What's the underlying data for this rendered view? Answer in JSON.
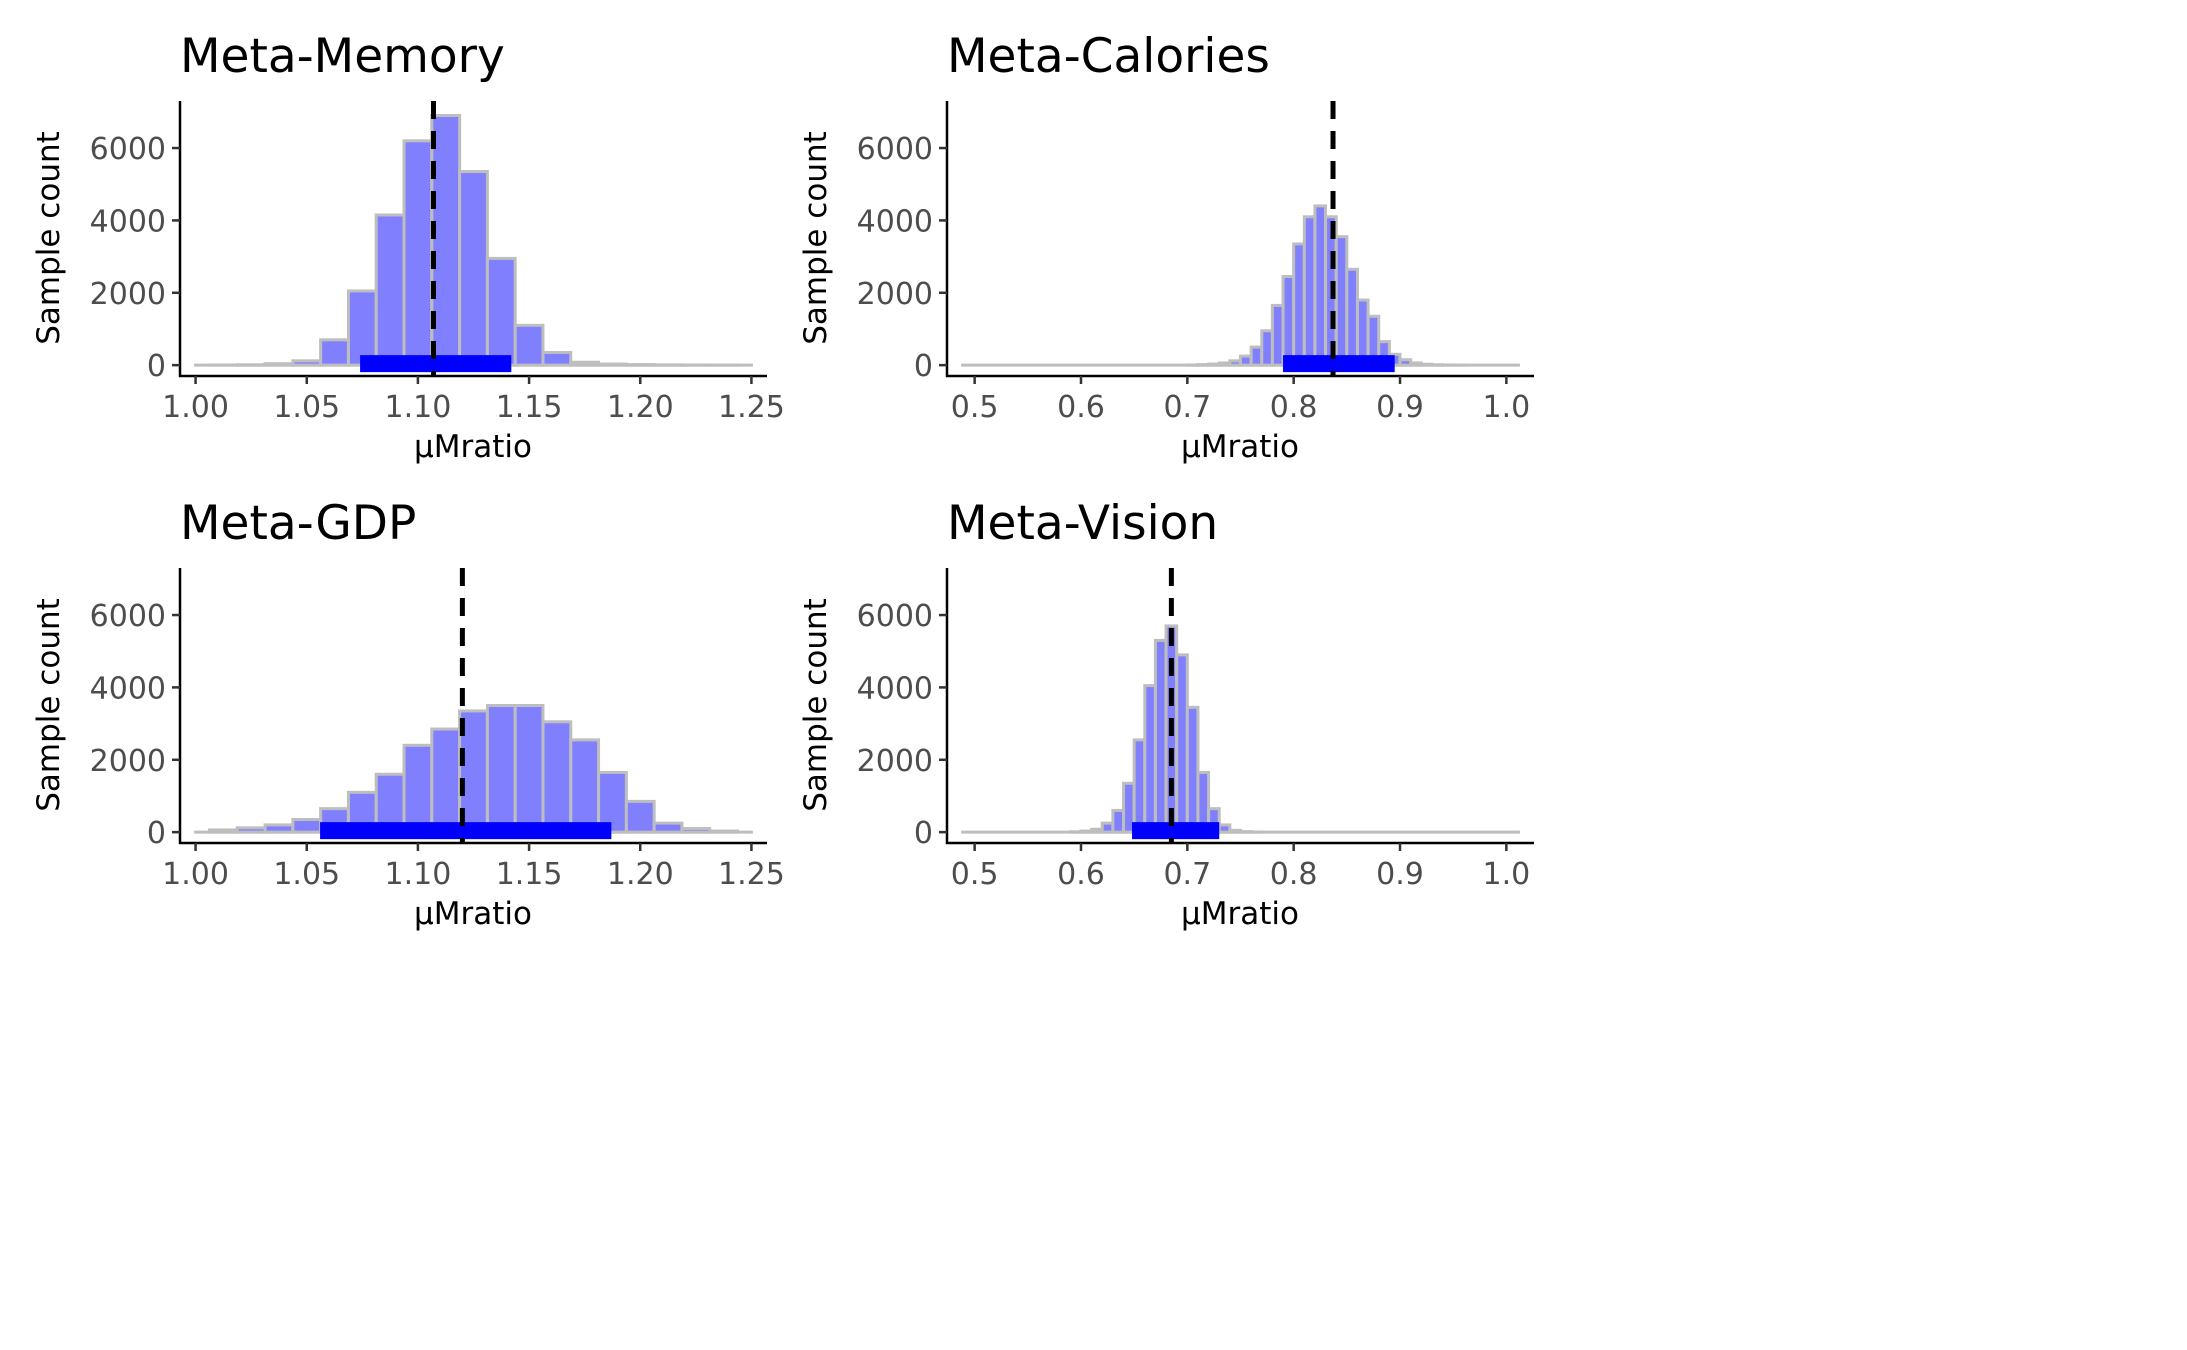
{
  "chart_data": [
    {
      "type": "bar",
      "title": "Meta-Memory",
      "xlabel": "μMratio",
      "ylabel": "Sample count",
      "xlim": [
        0.993,
        1.257
      ],
      "ylim": [
        -300,
        7300
      ],
      "x_ticks": [
        "1.00",
        "1.05",
        "1.10",
        "1.15",
        "1.20",
        "1.25"
      ],
      "y_ticks": [
        "0",
        "2000",
        "4000",
        "6000"
      ],
      "bin_width": 0.0125,
      "bin_centers": [
        1.0125,
        1.025,
        1.0375,
        1.05,
        1.0625,
        1.075,
        1.0875,
        1.1,
        1.1125,
        1.125,
        1.1375,
        1.15,
        1.1625,
        1.175,
        1.1875,
        1.2,
        1.2125,
        1.225,
        1.2375
      ],
      "values": [
        5,
        10,
        40,
        120,
        700,
        2050,
        4150,
        6200,
        6900,
        5350,
        2950,
        1100,
        350,
        80,
        30,
        15,
        8,
        4,
        2
      ],
      "mean": 1.107,
      "hdi": [
        1.074,
        1.142
      ],
      "colors": {
        "bar_fill": "#8080ff",
        "bar_stroke": "#bebebe",
        "hdi": "#0000ff",
        "mean_line": "#000000"
      }
    },
    {
      "type": "bar",
      "title": "Meta-Calories",
      "xlabel": "μMratio",
      "ylabel": "Sample count",
      "xlim": [
        0.474,
        1.026
      ],
      "ylim": [
        -300,
        7300
      ],
      "x_ticks": [
        "0.5",
        "0.6",
        "0.7",
        "0.8",
        "0.9",
        "1.0"
      ],
      "y_ticks": [
        "0",
        "2000",
        "4000",
        "6000"
      ],
      "bin_width": 0.01,
      "bin_centers": [
        0.705,
        0.715,
        0.725,
        0.735,
        0.745,
        0.755,
        0.765,
        0.775,
        0.785,
        0.795,
        0.805,
        0.815,
        0.825,
        0.835,
        0.845,
        0.855,
        0.865,
        0.875,
        0.885,
        0.895,
        0.905,
        0.915,
        0.925,
        0.935,
        0.945,
        0.955
      ],
      "values": [
        5,
        15,
        30,
        60,
        120,
        250,
        500,
        950,
        1650,
        2450,
        3350,
        4100,
        4400,
        4100,
        3550,
        2650,
        1800,
        1350,
        650,
        300,
        150,
        60,
        25,
        10,
        5,
        2
      ],
      "mean": 0.837,
      "hdi": [
        0.79,
        0.895
      ],
      "colors": {
        "bar_fill": "#8080ff",
        "bar_stroke": "#bebebe",
        "hdi": "#0000ff",
        "mean_line": "#000000"
      }
    },
    {
      "type": "bar",
      "title": "Meta-GDP",
      "xlabel": "μMratio",
      "ylabel": "Sample count",
      "xlim": [
        0.993,
        1.257
      ],
      "ylim": [
        -300,
        7300
      ],
      "x_ticks": [
        "1.00",
        "1.05",
        "1.10",
        "1.15",
        "1.20",
        "1.25"
      ],
      "y_ticks": [
        "0",
        "2000",
        "4000",
        "6000"
      ],
      "bin_width": 0.0125,
      "bin_centers": [
        1.0125,
        1.025,
        1.0375,
        1.05,
        1.0625,
        1.075,
        1.0875,
        1.1,
        1.1125,
        1.125,
        1.1375,
        1.15,
        1.1625,
        1.175,
        1.1875,
        1.2,
        1.2125,
        1.225,
        1.2375
      ],
      "values": [
        60,
        120,
        200,
        350,
        650,
        1100,
        1600,
        2400,
        2850,
        3350,
        3500,
        3500,
        3050,
        2550,
        1650,
        850,
        250,
        100,
        30
      ],
      "mean": 1.12,
      "hdi": [
        1.056,
        1.187
      ],
      "colors": {
        "bar_fill": "#8080ff",
        "bar_stroke": "#bebebe",
        "hdi": "#0000ff",
        "mean_line": "#000000"
      }
    },
    {
      "type": "bar",
      "title": "Meta-Vision",
      "xlabel": "μMratio",
      "ylabel": "Sample count",
      "xlim": [
        0.474,
        1.026
      ],
      "ylim": [
        -300,
        7300
      ],
      "x_ticks": [
        "0.5",
        "0.6",
        "0.7",
        "0.8",
        "0.9",
        "1.0"
      ],
      "y_ticks": [
        "0",
        "2000",
        "4000",
        "6000"
      ],
      "bin_width": 0.01,
      "bin_centers": [
        0.595,
        0.605,
        0.615,
        0.625,
        0.635,
        0.645,
        0.655,
        0.665,
        0.675,
        0.685,
        0.695,
        0.705,
        0.715,
        0.725,
        0.735,
        0.745,
        0.755,
        0.765
      ],
      "values": [
        10,
        30,
        80,
        250,
        600,
        1350,
        2550,
        4050,
        5300,
        5700,
        4900,
        3450,
        1650,
        650,
        200,
        50,
        15,
        5
      ],
      "mean": 0.685,
      "hdi": [
        0.648,
        0.73
      ],
      "colors": {
        "bar_fill": "#8080ff",
        "bar_stroke": "#bebebe",
        "hdi": "#0000ff",
        "mean_line": "#000000"
      }
    }
  ]
}
